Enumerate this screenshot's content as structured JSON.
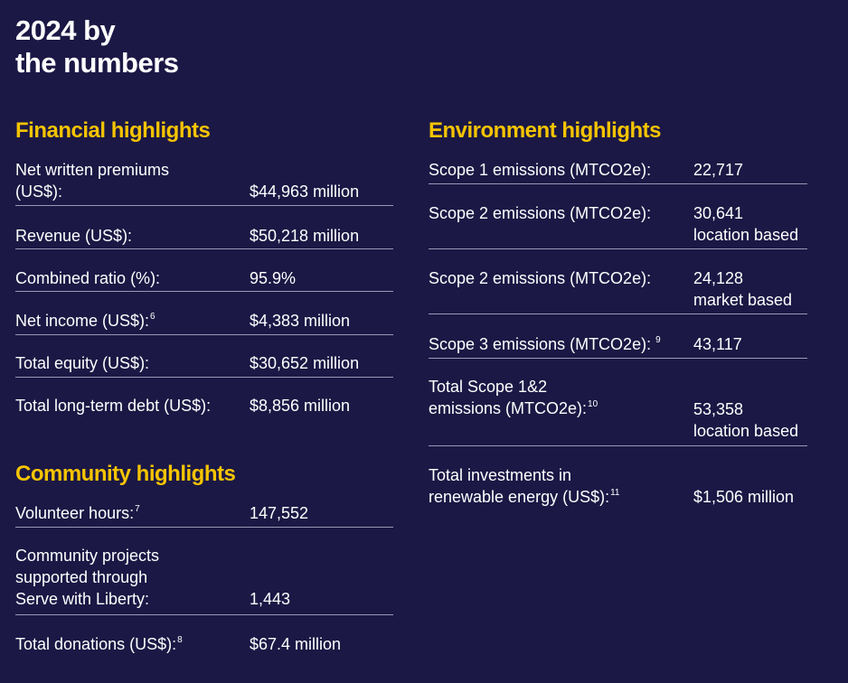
{
  "title": {
    "line1": "2024 by",
    "line2": "the numbers"
  },
  "financial": {
    "heading": "Financial highlights",
    "rows": [
      {
        "label_line1": "Net written premiums",
        "label_line2": "(US$):",
        "value": "$44,963 million"
      },
      {
        "label": "Revenue (US$):",
        "value": "$50,218 million"
      },
      {
        "label": "Combined ratio (%):",
        "value": "95.9%"
      },
      {
        "label": "Net income (US$):",
        "sup": "6",
        "value": "$4,383 million"
      },
      {
        "label": "Total equity (US$):",
        "value": "$30,652 million"
      },
      {
        "label": "Total long-term debt (US$):",
        "value": "$8,856 million"
      }
    ]
  },
  "community": {
    "heading": "Community highlights",
    "rows": [
      {
        "label": "Volunteer hours:",
        "sup": "7",
        "value": "147,552"
      },
      {
        "label_line1": "Community projects",
        "label_line2": "supported through",
        "label_line3": "Serve with Liberty:",
        "value": "1,443"
      },
      {
        "label": "Total donations (US$):",
        "sup": "8",
        "value": "$67.4 million"
      }
    ]
  },
  "environment": {
    "heading": "Environment highlights",
    "rows": [
      {
        "label": "Scope 1 emissions (MTCO2e):",
        "value": "22,717"
      },
      {
        "label": "Scope 2 emissions (MTCO2e):",
        "value_line1": "30,641",
        "value_line2": "location based"
      },
      {
        "label": "Scope 2 emissions (MTCO2e):",
        "value_line1": "24,128",
        "value_line2": "market based"
      },
      {
        "label": "Scope 3 emissions (MTCO2e):",
        "sup": "9",
        "value": "43,117"
      },
      {
        "label_line1": "Total Scope 1&2",
        "label_line2": "emissions (MTCO2e):",
        "sup": "10",
        "value_line1": "53,358",
        "value_line2": "location based"
      },
      {
        "label_line1": "Total investments in",
        "label_line2": "renewable energy (US$):",
        "sup": "11",
        "value": "$1,506 million"
      }
    ]
  }
}
